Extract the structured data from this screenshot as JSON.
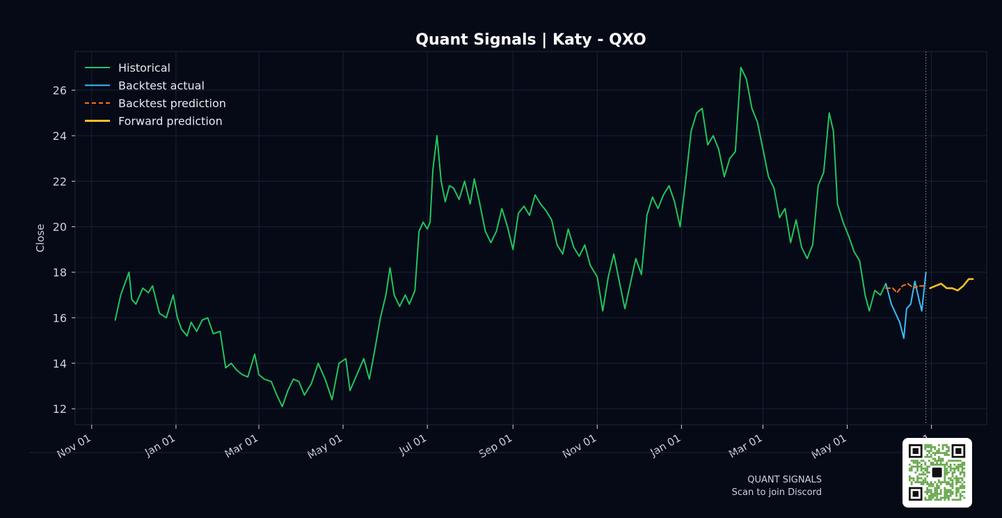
{
  "chart_data": {
    "type": "line",
    "title": "Quant Signals | Katy - QXO",
    "xlabel": "",
    "ylabel": "Close",
    "ylim": [
      11.3,
      27.7
    ],
    "xlim": [
      "2023-10-20",
      "2025-08-10"
    ],
    "grid": true,
    "legend_position": "top-left",
    "forecast_start_marker": "2025-06-27",
    "x_ticks": [
      {
        "date": "2023-11-01",
        "label": "Nov 01"
      },
      {
        "date": "2024-01-01",
        "label": "Jan 01"
      },
      {
        "date": "2024-03-01",
        "label": "Mar 01"
      },
      {
        "date": "2024-05-01",
        "label": "May 01"
      },
      {
        "date": "2024-07-01",
        "label": "Jul 01"
      },
      {
        "date": "2024-09-01",
        "label": "Sep 01"
      },
      {
        "date": "2024-11-01",
        "label": "Nov 01"
      },
      {
        "date": "2025-01-01",
        "label": "Jan 01"
      },
      {
        "date": "2025-03-01",
        "label": "Mar 01"
      },
      {
        "date": "2025-05-01",
        "label": "May 01"
      },
      {
        "date": "2025-07-01",
        "label": "Jul 01"
      }
    ],
    "y_ticks": [
      12,
      14,
      16,
      18,
      20,
      22,
      24,
      26
    ],
    "series": [
      {
        "name": "Historical",
        "color": "#22c55e",
        "style": "solid",
        "points": [
          [
            "2023-11-18",
            15.9
          ],
          [
            "2023-11-22",
            17.0
          ],
          [
            "2023-11-28",
            18.0
          ],
          [
            "2023-11-30",
            16.8
          ],
          [
            "2023-12-03",
            16.6
          ],
          [
            "2023-12-08",
            17.3
          ],
          [
            "2023-12-12",
            17.1
          ],
          [
            "2023-12-15",
            17.4
          ],
          [
            "2023-12-20",
            16.2
          ],
          [
            "2023-12-25",
            16.0
          ],
          [
            "2023-12-30",
            17.0
          ],
          [
            "2024-01-02",
            16.0
          ],
          [
            "2024-01-05",
            15.5
          ],
          [
            "2024-01-09",
            15.2
          ],
          [
            "2024-01-12",
            15.8
          ],
          [
            "2024-01-16",
            15.4
          ],
          [
            "2024-01-20",
            15.9
          ],
          [
            "2024-01-24",
            16.0
          ],
          [
            "2024-01-28",
            15.3
          ],
          [
            "2024-02-02",
            15.4
          ],
          [
            "2024-02-06",
            13.8
          ],
          [
            "2024-02-10",
            14.0
          ],
          [
            "2024-02-14",
            13.7
          ],
          [
            "2024-02-18",
            13.5
          ],
          [
            "2024-02-22",
            13.4
          ],
          [
            "2024-02-27",
            14.4
          ],
          [
            "2024-03-01",
            13.5
          ],
          [
            "2024-03-05",
            13.3
          ],
          [
            "2024-03-10",
            13.2
          ],
          [
            "2024-03-14",
            12.6
          ],
          [
            "2024-03-18",
            12.1
          ],
          [
            "2024-03-22",
            12.8
          ],
          [
            "2024-03-26",
            13.3
          ],
          [
            "2024-03-30",
            13.2
          ],
          [
            "2024-04-03",
            12.6
          ],
          [
            "2024-04-08",
            13.1
          ],
          [
            "2024-04-13",
            14.0
          ],
          [
            "2024-04-18",
            13.3
          ],
          [
            "2024-04-23",
            12.4
          ],
          [
            "2024-04-28",
            14.0
          ],
          [
            "2024-05-03",
            14.2
          ],
          [
            "2024-05-06",
            12.8
          ],
          [
            "2024-05-11",
            13.5
          ],
          [
            "2024-05-16",
            14.2
          ],
          [
            "2024-05-20",
            13.3
          ],
          [
            "2024-05-24",
            14.6
          ],
          [
            "2024-05-28",
            16.0
          ],
          [
            "2024-06-01",
            17.0
          ],
          [
            "2024-06-04",
            18.2
          ],
          [
            "2024-06-07",
            17.0
          ],
          [
            "2024-06-11",
            16.5
          ],
          [
            "2024-06-15",
            17.0
          ],
          [
            "2024-06-18",
            16.6
          ],
          [
            "2024-06-22",
            17.2
          ],
          [
            "2024-06-25",
            19.8
          ],
          [
            "2024-06-28",
            20.2
          ],
          [
            "2024-07-01",
            19.9
          ],
          [
            "2024-07-03",
            20.2
          ],
          [
            "2024-07-05",
            22.5
          ],
          [
            "2024-07-08",
            24.0
          ],
          [
            "2024-07-11",
            22.0
          ],
          [
            "2024-07-14",
            21.1
          ],
          [
            "2024-07-17",
            21.8
          ],
          [
            "2024-07-20",
            21.7
          ],
          [
            "2024-07-24",
            21.2
          ],
          [
            "2024-07-28",
            22.0
          ],
          [
            "2024-08-01",
            21.0
          ],
          [
            "2024-08-04",
            22.1
          ],
          [
            "2024-08-08",
            21.0
          ],
          [
            "2024-08-12",
            19.8
          ],
          [
            "2024-08-16",
            19.3
          ],
          [
            "2024-08-20",
            19.8
          ],
          [
            "2024-08-24",
            20.8
          ],
          [
            "2024-08-28",
            20.0
          ],
          [
            "2024-09-01",
            19.0
          ],
          [
            "2024-09-05",
            20.6
          ],
          [
            "2024-09-09",
            20.9
          ],
          [
            "2024-09-13",
            20.5
          ],
          [
            "2024-09-17",
            21.4
          ],
          [
            "2024-09-21",
            21.0
          ],
          [
            "2024-09-25",
            20.7
          ],
          [
            "2024-09-29",
            20.3
          ],
          [
            "2024-10-03",
            19.2
          ],
          [
            "2024-10-07",
            18.8
          ],
          [
            "2024-10-11",
            19.9
          ],
          [
            "2024-10-15",
            19.1
          ],
          [
            "2024-10-19",
            18.7
          ],
          [
            "2024-10-23",
            19.2
          ],
          [
            "2024-10-27",
            18.3
          ],
          [
            "2024-11-01",
            17.8
          ],
          [
            "2024-11-05",
            16.3
          ],
          [
            "2024-11-09",
            17.8
          ],
          [
            "2024-11-13",
            18.8
          ],
          [
            "2024-11-17",
            17.6
          ],
          [
            "2024-11-21",
            16.4
          ],
          [
            "2024-11-25",
            17.5
          ],
          [
            "2024-11-29",
            18.6
          ],
          [
            "2024-12-03",
            17.9
          ],
          [
            "2024-12-07",
            20.5
          ],
          [
            "2024-12-11",
            21.3
          ],
          [
            "2024-12-15",
            20.8
          ],
          [
            "2024-12-19",
            21.4
          ],
          [
            "2024-12-23",
            21.8
          ],
          [
            "2024-12-27",
            21.1
          ],
          [
            "2024-12-31",
            20.0
          ],
          [
            "2025-01-04",
            22.0
          ],
          [
            "2025-01-08",
            24.2
          ],
          [
            "2025-01-12",
            25.0
          ],
          [
            "2025-01-16",
            25.2
          ],
          [
            "2025-01-20",
            23.6
          ],
          [
            "2025-01-24",
            24.0
          ],
          [
            "2025-01-28",
            23.4
          ],
          [
            "2025-02-01",
            22.2
          ],
          [
            "2025-02-05",
            23.0
          ],
          [
            "2025-02-09",
            23.3
          ],
          [
            "2025-02-13",
            27.0
          ],
          [
            "2025-02-17",
            26.5
          ],
          [
            "2025-02-21",
            25.2
          ],
          [
            "2025-02-25",
            24.6
          ],
          [
            "2025-03-01",
            23.4
          ],
          [
            "2025-03-05",
            22.2
          ],
          [
            "2025-03-09",
            21.7
          ],
          [
            "2025-03-13",
            20.4
          ],
          [
            "2025-03-17",
            20.8
          ],
          [
            "2025-03-21",
            19.3
          ],
          [
            "2025-03-25",
            20.3
          ],
          [
            "2025-03-29",
            19.1
          ],
          [
            "2025-04-02",
            18.6
          ],
          [
            "2025-04-06",
            19.2
          ],
          [
            "2025-04-10",
            21.8
          ],
          [
            "2025-04-14",
            22.4
          ],
          [
            "2025-04-18",
            25.0
          ],
          [
            "2025-04-21",
            24.2
          ],
          [
            "2025-04-24",
            21.0
          ],
          [
            "2025-04-28",
            20.2
          ],
          [
            "2025-05-02",
            19.6
          ],
          [
            "2025-05-06",
            18.9
          ],
          [
            "2025-05-10",
            18.5
          ],
          [
            "2025-05-14",
            17.0
          ],
          [
            "2025-05-17",
            16.3
          ],
          [
            "2025-05-21",
            17.2
          ],
          [
            "2025-05-25",
            17.0
          ],
          [
            "2025-05-29",
            17.5
          ]
        ]
      },
      {
        "name": "Backtest actual",
        "color": "#38bdf8",
        "style": "solid",
        "points": [
          [
            "2025-05-29",
            17.5
          ],
          [
            "2025-06-02",
            16.6
          ],
          [
            "2025-06-05",
            16.2
          ],
          [
            "2025-06-08",
            15.8
          ],
          [
            "2025-06-11",
            15.1
          ],
          [
            "2025-06-13",
            16.4
          ],
          [
            "2025-06-16",
            16.6
          ],
          [
            "2025-06-19",
            17.6
          ],
          [
            "2025-06-22",
            16.8
          ],
          [
            "2025-06-24",
            16.3
          ],
          [
            "2025-06-27",
            18.0
          ]
        ]
      },
      {
        "name": "Backtest prediction",
        "color": "#f97316",
        "style": "dashed",
        "points": [
          [
            "2025-05-29",
            17.3
          ],
          [
            "2025-06-03",
            17.3
          ],
          [
            "2025-06-06",
            17.1
          ],
          [
            "2025-06-10",
            17.4
          ],
          [
            "2025-06-14",
            17.5
          ],
          [
            "2025-06-18",
            17.3
          ],
          [
            "2025-06-22",
            17.4
          ],
          [
            "2025-06-27",
            17.4
          ]
        ]
      },
      {
        "name": "Forward prediction",
        "color": "#fbbf24",
        "style": "solid",
        "points": [
          [
            "2025-06-30",
            17.3
          ],
          [
            "2025-07-04",
            17.4
          ],
          [
            "2025-07-08",
            17.5
          ],
          [
            "2025-07-12",
            17.3
          ],
          [
            "2025-07-16",
            17.3
          ],
          [
            "2025-07-20",
            17.2
          ],
          [
            "2025-07-24",
            17.4
          ],
          [
            "2025-07-28",
            17.7
          ],
          [
            "2025-07-31",
            17.7
          ]
        ]
      }
    ]
  },
  "footer": {
    "brand": "QUANT SIGNALS",
    "cta": "Scan to join Discord"
  },
  "qr": {
    "icon": "discord-qr-code",
    "module_color": "#6aa84f",
    "finder_color": "#111111"
  }
}
